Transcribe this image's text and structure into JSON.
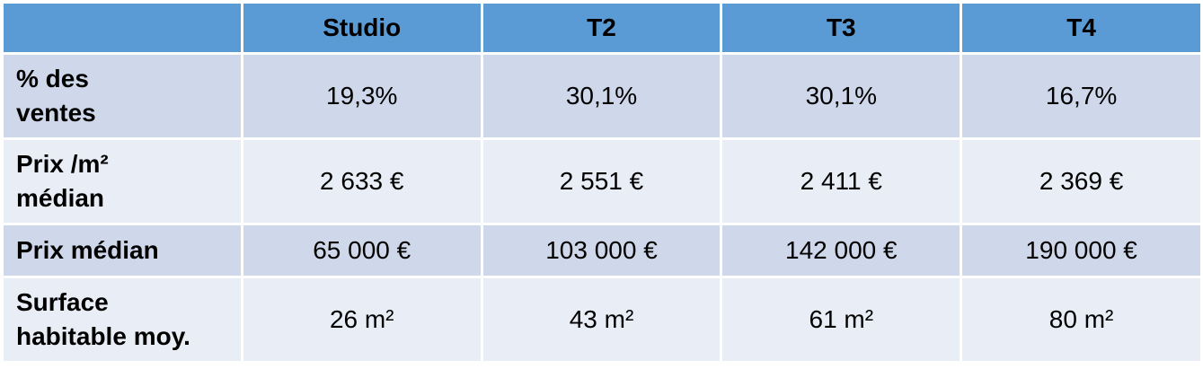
{
  "table": {
    "header": [
      "",
      "Studio",
      "T2",
      "T3",
      "T4"
    ],
    "rows": [
      [
        "% des\nventes",
        "19,3%",
        "30,1%",
        "30,1%",
        "16,7%"
      ],
      [
        "Prix /m²\nmédian",
        "2 633 €",
        "2 551 €",
        "2 411 €",
        "2 369 €"
      ],
      [
        "Prix médian",
        "65 000 €",
        "103 000 €",
        "142 000 €",
        "190 000 €"
      ],
      [
        "Surface\nhabitable moy.",
        "26 m²",
        "43 m²",
        "61 m²",
        "80 m²"
      ]
    ]
  }
}
